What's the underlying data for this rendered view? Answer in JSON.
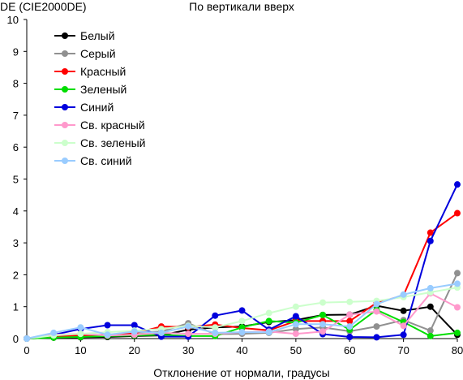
{
  "chart_data": {
    "type": "line",
    "title": "По вертикали вверх",
    "ylabel": "DE (CIE2000DE)",
    "xlabel": "Отклонение от нормали, градусы",
    "xlim": [
      0,
      80
    ],
    "ylim": [
      0,
      10
    ],
    "x_ticks": [
      "0",
      "10",
      "20",
      "30",
      "40",
      "50",
      "60",
      "70",
      "80"
    ],
    "y_ticks": [
      "0",
      "1",
      "2",
      "3",
      "4",
      "5",
      "6",
      "7",
      "8",
      "9",
      "10"
    ],
    "legend_position": "top-left",
    "grid": false,
    "x": [
      0,
      5,
      10,
      15,
      20,
      25,
      30,
      35,
      40,
      45,
      50,
      55,
      60,
      65,
      70,
      75,
      80
    ],
    "series": [
      {
        "name": "Белый",
        "color": "#000000",
        "values": [
          0,
          0.03,
          0.04,
          0.05,
          0.08,
          0.1,
          0.28,
          0.35,
          0.38,
          0.52,
          0.58,
          0.74,
          0.75,
          1.03,
          0.87,
          1.0,
          0.12
        ]
      },
      {
        "name": "Серый",
        "color": "#909090",
        "values": [
          0,
          0.05,
          0.08,
          0.12,
          0.18,
          0.22,
          0.48,
          0.14,
          0.15,
          0.18,
          0.3,
          0.35,
          0.23,
          0.38,
          0.58,
          0.25,
          2.05
        ]
      },
      {
        "name": "Красный",
        "color": "#ff0000",
        "values": [
          0,
          0.08,
          0.1,
          0.12,
          0.16,
          0.38,
          0.36,
          0.44,
          0.33,
          0.26,
          0.55,
          0.55,
          0.55,
          1.12,
          1.35,
          3.32,
          3.93
        ]
      },
      {
        "name": "Зеленый",
        "color": "#00dd00",
        "values": [
          0,
          0.03,
          0.05,
          0.08,
          0.1,
          0.12,
          0.08,
          0.08,
          0.35,
          0.55,
          0.5,
          0.74,
          0.28,
          0.9,
          0.52,
          0.08,
          0.18
        ]
      },
      {
        "name": "Синий",
        "color": "#0000dd",
        "values": [
          0,
          0.12,
          0.3,
          0.42,
          0.42,
          0.06,
          0.06,
          0.72,
          0.88,
          0.28,
          0.7,
          0.14,
          0.05,
          0.04,
          0.12,
          3.06,
          4.83
        ]
      },
      {
        "name": "Св. красный",
        "color": "#ff99cc",
        "values": [
          0,
          0.12,
          0.15,
          0.1,
          0.12,
          0.18,
          0.15,
          0.15,
          0.2,
          0.22,
          0.15,
          0.22,
          0.75,
          0.85,
          0.4,
          1.42,
          0.98
        ]
      },
      {
        "name": "Св. зеленый",
        "color": "#ccffcc",
        "values": [
          0,
          0.1,
          0.15,
          0.2,
          0.25,
          0.3,
          0.4,
          0.35,
          0.55,
          0.8,
          1.0,
          1.13,
          1.15,
          1.18,
          1.3,
          1.45,
          1.6
        ]
      },
      {
        "name": "Св. синий",
        "color": "#99ccff",
        "values": [
          0,
          0.18,
          0.35,
          0.12,
          0.22,
          0.18,
          0.38,
          0.18,
          0.2,
          0.2,
          0.45,
          0.45,
          0.38,
          1.08,
          1.38,
          1.58,
          1.72
        ]
      }
    ]
  }
}
